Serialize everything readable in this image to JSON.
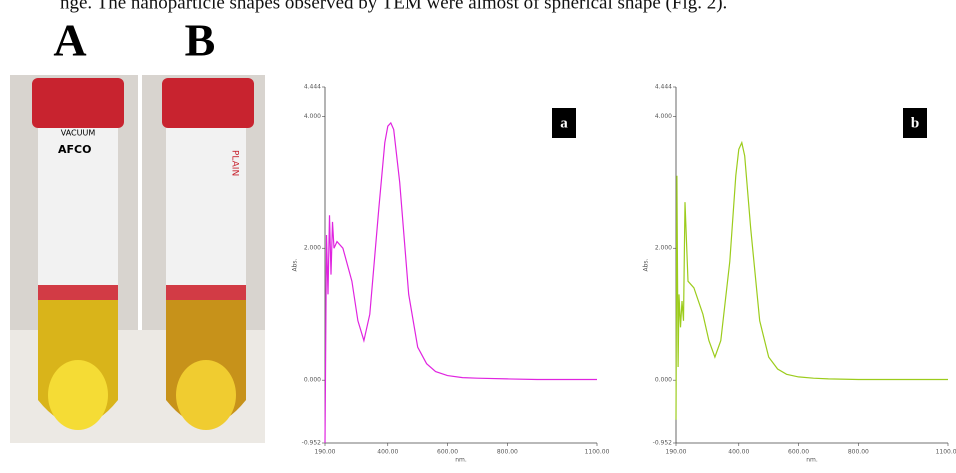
{
  "header": {
    "text": "nge. The nanoparticle shapes observed by TEM were almost of spherical shape (Fig. 2)."
  },
  "photos": {
    "labels": [
      "A",
      "B"
    ],
    "vial_texts": [
      "VACUUM",
      "AFCO",
      "PLAIN"
    ]
  },
  "chart_data": [
    {
      "type": "line",
      "panel_label": "a",
      "xlabel": "nm.",
      "ylabel": "Abs.",
      "xlim": [
        190,
        1100
      ],
      "ylim": [
        -0.952,
        4.444
      ],
      "xticks": [
        {
          "value": 190,
          "label": "190.00"
        },
        {
          "value": 400,
          "label": "400.00"
        },
        {
          "value": 600,
          "label": "600.00"
        },
        {
          "value": 800,
          "label": "800.00"
        },
        {
          "value": 1100,
          "label": "1100.00"
        }
      ],
      "yticks": [
        -0.952,
        {
          "value": 0,
          "label": "0.000"
        },
        {
          "value": 2,
          "label": "2.000"
        },
        {
          "value": 4,
          "label": "4.000"
        },
        4.444
      ],
      "series": [
        {
          "color": "#e024e0",
          "x": [
            190,
            195,
            200,
            205,
            210,
            215,
            220,
            230,
            250,
            280,
            300,
            320,
            340,
            370,
            390,
            400,
            410,
            420,
            440,
            470,
            500,
            530,
            560,
            600,
            650,
            700,
            800,
            900,
            1000,
            1100
          ],
          "values": [
            -0.95,
            2.2,
            1.3,
            2.5,
            1.6,
            2.4,
            2.0,
            2.1,
            2.0,
            1.5,
            0.9,
            0.6,
            1.0,
            2.6,
            3.6,
            3.85,
            3.9,
            3.8,
            3.0,
            1.3,
            0.5,
            0.25,
            0.13,
            0.07,
            0.04,
            0.03,
            0.02,
            0.01,
            0.01,
            0.01
          ]
        }
      ]
    },
    {
      "type": "line",
      "panel_label": "b",
      "xlabel": "nm.",
      "ylabel": "Abs.",
      "xlim": [
        190,
        1100
      ],
      "ylim": [
        -0.952,
        4.444
      ],
      "xticks": [
        {
          "value": 190,
          "label": "190.00"
        },
        {
          "value": 400,
          "label": "400.00"
        },
        {
          "value": 600,
          "label": "600.00"
        },
        {
          "value": 800,
          "label": "800.00"
        },
        {
          "value": 1100,
          "label": "1100.00"
        }
      ],
      "yticks": [
        -0.952,
        {
          "value": 0,
          "label": "0.000"
        },
        {
          "value": 2,
          "label": "2.000"
        },
        {
          "value": 4,
          "label": "4.000"
        },
        4.444
      ],
      "series": [
        {
          "color": "#9ccc1c",
          "x": [
            190,
            193,
            197,
            200,
            205,
            210,
            215,
            220,
            230,
            250,
            280,
            300,
            320,
            340,
            370,
            390,
            400,
            410,
            420,
            440,
            470,
            500,
            530,
            560,
            600,
            650,
            700,
            800,
            900,
            1100
          ],
          "values": [
            -0.6,
            3.1,
            0.2,
            1.3,
            0.8,
            1.2,
            0.9,
            2.7,
            1.5,
            1.4,
            1.0,
            0.6,
            0.35,
            0.6,
            1.8,
            3.1,
            3.5,
            3.6,
            3.4,
            2.3,
            0.9,
            0.35,
            0.17,
            0.09,
            0.05,
            0.03,
            0.02,
            0.01,
            0.01,
            0.01
          ]
        }
      ]
    }
  ]
}
